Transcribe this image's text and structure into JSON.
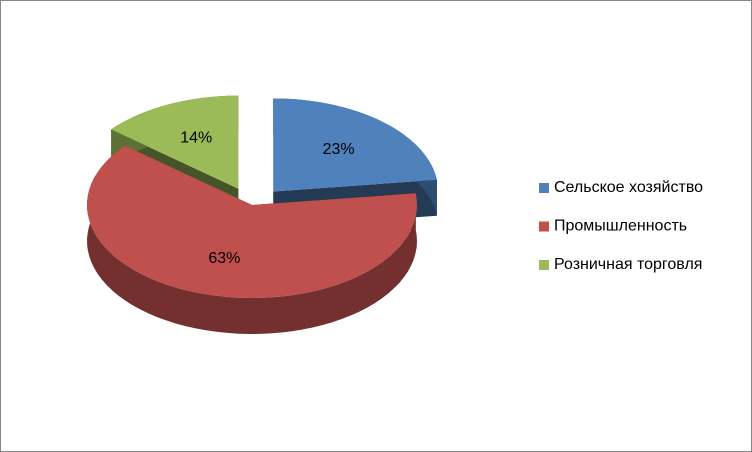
{
  "chart_data": {
    "type": "pie3d",
    "categories": [
      "Сельское хозяйство",
      "Промышленность",
      "Розничная торговля"
    ],
    "values": [
      23,
      63,
      14
    ],
    "value_labels": [
      "23%",
      "63%",
      "14%"
    ],
    "colors": [
      "#4f81bd",
      "#c0504d",
      "#9bbb59"
    ],
    "legend": "right"
  }
}
